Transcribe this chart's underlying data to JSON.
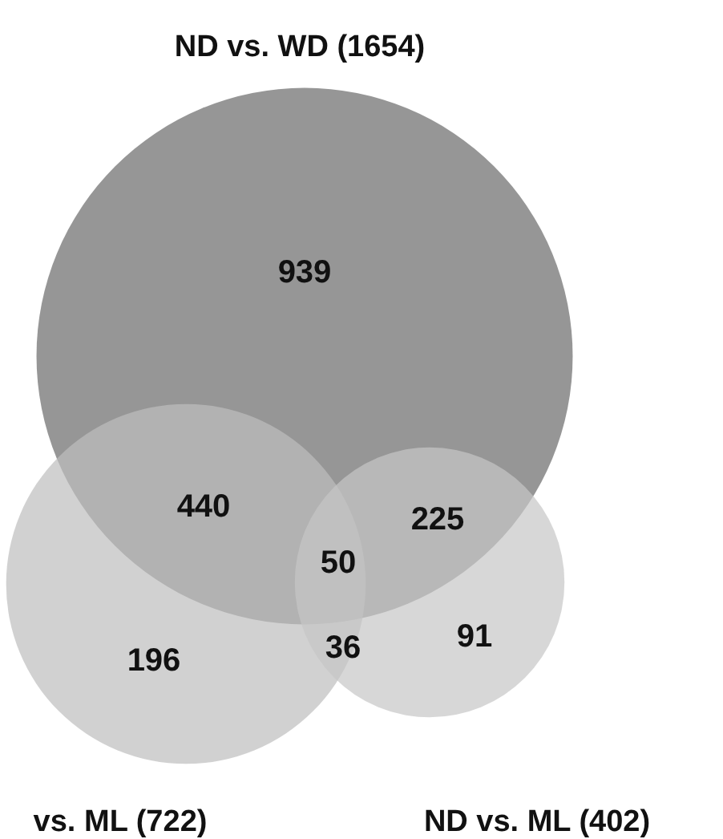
{
  "chart_data": {
    "type": "other",
    "values": [
      939,
      440,
      225,
      50,
      196,
      36,
      91
    ],
    "data_labels": true,
    "annotations": [
      "ND vs. WD (1654)",
      "vs. ML   (722)",
      "ND vs. ML   (402)"
    ]
  }
}
